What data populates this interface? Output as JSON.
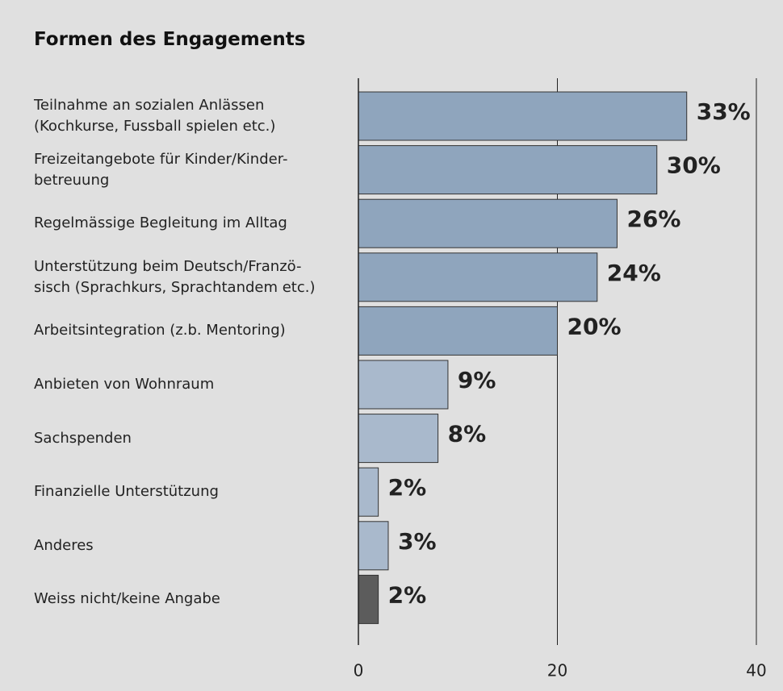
{
  "chart_data": {
    "type": "barh",
    "title": "Formen des Engagements",
    "categories": [
      "Teilnahme an sozialen Anlässen\n(Kochkurse, Fussball spielen etc.)",
      "Freizeitangebote für Kinder/Kinder-\nbetreuung",
      "Regelmässige Begleitung im Alltag",
      "Unterstützung beim Deutsch/Franzö-\nsisch (Sprachkurs, Sprachtandem etc.)",
      "Arbeitsintegration (z.b. Mentoring)",
      "Anbieten von Wohnraum",
      "Sachspenden",
      "Finanzielle Unterstützung",
      "Anderes",
      "Weiss nicht/keine Angabe"
    ],
    "values": [
      33,
      30,
      26,
      24,
      20,
      9,
      8,
      2,
      3,
      2
    ],
    "value_labels": [
      "33%",
      "30%",
      "26%",
      "24%",
      "20%",
      "9%",
      "8%",
      "2%",
      "3%",
      "2%"
    ],
    "colors": [
      "#8fa5bd",
      "#8fa5bd",
      "#8fa5bd",
      "#8fa5bd",
      "#8fa5bd",
      "#a9b9cc",
      "#a9b9cc",
      "#a9b9cc",
      "#a9b9cc",
      "#5c5c5c"
    ],
    "xlim": [
      0,
      40
    ],
    "xticks": [
      0,
      20,
      40
    ],
    "grid": true
  }
}
